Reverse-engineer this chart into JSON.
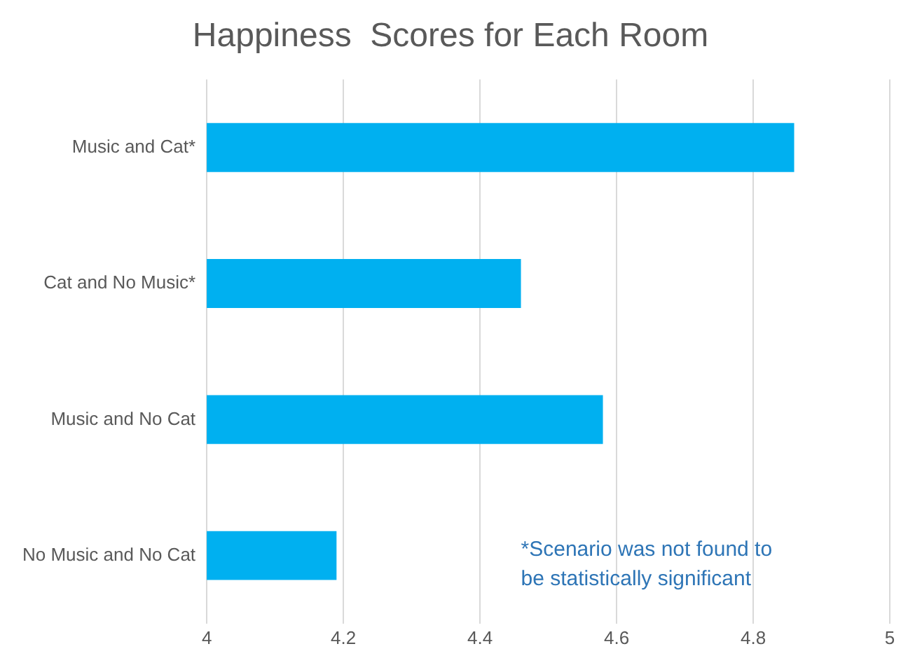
{
  "chart_data": {
    "type": "bar",
    "orientation": "horizontal",
    "title": "Happiness  Scores for Each Room",
    "categories": [
      "Music and Cat*",
      "Cat and No Music*",
      "Music and No Cat",
      "No Music and No Cat"
    ],
    "values": [
      4.86,
      4.46,
      4.58,
      4.19
    ],
    "color": "#00b0f0",
    "xlim": [
      4,
      5
    ],
    "xticks": [
      4,
      4.2,
      4.4,
      4.6,
      4.8,
      5
    ],
    "grid": "x",
    "annotations": [
      "*Scenario was not found to be statistically significant"
    ]
  }
}
